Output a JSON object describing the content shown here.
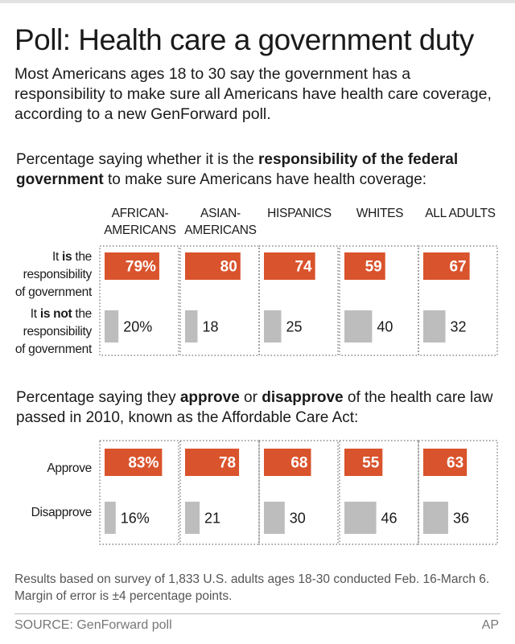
{
  "title": "Poll: Health care a government duty",
  "intro": "Most Americans ages 18 to 30 say the government has a responsibility to make sure all Americans have health care coverage, according to a new GenForward poll.",
  "question1": {
    "pre": "Percentage saying whether it is the ",
    "bold": "responsibility of the federal government",
    "post": " to make sure Americans have health coverage:"
  },
  "question2": {
    "pre": "Percentage saying they ",
    "bold1": "approve",
    "mid": " or ",
    "bold2": "disapprove",
    "post": " of the health care law passed in 2010, known as the Affordable Care Act:"
  },
  "columns": [
    {
      "line1": "AFRICAN-",
      "line2": "AMERICANS"
    },
    {
      "line1": "ASIAN-",
      "line2": "AMERICANS"
    },
    {
      "line1": "",
      "line2": "HISPANICS"
    },
    {
      "line1": "",
      "line2": "WHITES"
    },
    {
      "line1": "",
      "line2": "ALL ADULTS"
    }
  ],
  "row_labels": {
    "is": {
      "line1_pre": "It ",
      "line1_bold": "is",
      "line1_post": " the",
      "line2": "responsibility",
      "line3": "of government"
    },
    "is_not": {
      "line1_pre": "It ",
      "line1_bold": "is not",
      "line1_post": " the",
      "line2": "responsibility",
      "line3": "of government"
    },
    "approve": "Approve",
    "disapprove": "Disapprove"
  },
  "colors": {
    "orange": "#d9532c",
    "gray": "#bdbdbd",
    "text": "#1a1a1a"
  },
  "chart_data": [
    {
      "type": "bar",
      "categories": [
        "AFRICAN-AMERICANS",
        "ASIAN-AMERICANS",
        "HISPANICS",
        "WHITES",
        "ALL ADULTS"
      ],
      "series": [
        {
          "name": "It is the responsibility of government",
          "values": [
            79,
            80,
            74,
            59,
            67
          ],
          "labels": [
            "79%",
            "80",
            "74",
            "59",
            "67"
          ]
        },
        {
          "name": "It is not the responsibility of government",
          "values": [
            20,
            18,
            25,
            40,
            32
          ],
          "labels": [
            "20%",
            "18",
            "25",
            "40",
            "32"
          ]
        }
      ],
      "ylim": [
        0,
        100
      ]
    },
    {
      "type": "bar",
      "categories": [
        "AFRICAN-AMERICANS",
        "ASIAN-AMERICANS",
        "HISPANICS",
        "WHITES",
        "ALL ADULTS"
      ],
      "series": [
        {
          "name": "Approve",
          "values": [
            83,
            78,
            68,
            55,
            63
          ],
          "labels": [
            "83%",
            "78",
            "68",
            "55",
            "63"
          ]
        },
        {
          "name": "Disapprove",
          "values": [
            16,
            21,
            30,
            46,
            36
          ],
          "labels": [
            "16%",
            "21",
            "30",
            "46",
            "36"
          ]
        }
      ],
      "ylim": [
        0,
        100
      ]
    }
  ],
  "note": "Results based on survey of 1,833 U.S. adults ages 18-30 conducted Feb. 16-March 6. Margin of error is ±4 percentage points.",
  "source": "SOURCE: GenForward poll",
  "credit": "AP"
}
